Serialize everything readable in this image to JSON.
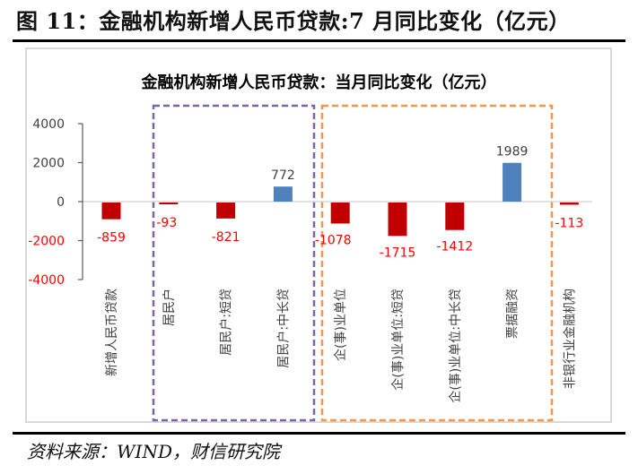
{
  "figure": {
    "title": "图 11：金融机构新增人民币贷款:7 月同比变化（亿元）",
    "source": "资料来源：WIND，财信研究院"
  },
  "colors": {
    "negative": "#c00000",
    "positive": "#4f81bd",
    "negative_label": "#ff0000",
    "positive_label": "#404040",
    "household_box": "#8064a2",
    "enterprise_box": "#f79646",
    "axis": "#595959",
    "zero_line": "#d9d9d9"
  },
  "chart_data": {
    "type": "bar",
    "title": "金融机构新增人民币贷款：当月同比变化（亿元）",
    "xlabel": "",
    "ylabel": "",
    "ylim": [
      -4000,
      4000
    ],
    "yticks": [
      4000,
      2000,
      0,
      -2000,
      -4000
    ],
    "ytick_labels": [
      "4000",
      "2000",
      "0",
      "-2000",
      "-4000"
    ],
    "grid": false,
    "legend": "none",
    "categories": [
      "新增人民币贷款",
      "居民户",
      "居民户:短贷",
      "居民户:中长贷",
      "企(事)业单位",
      "企(事)业单位:短贷",
      "企(事)业单位:中长贷",
      "票据融资",
      "非银行业金融机构"
    ],
    "values": [
      -859,
      -93,
      -821,
      772,
      -1078,
      -1715,
      -1412,
      1989,
      -113
    ],
    "data_labels": [
      "-859",
      "-93",
      "-821",
      "772",
      "-1078",
      "-1715",
      "-1412",
      "1989",
      "-113"
    ],
    "groups": [
      {
        "name": "household",
        "categories": [
          "居民户",
          "居民户:短贷",
          "居民户:中长贷"
        ],
        "style": "dashed-box"
      },
      {
        "name": "enterprise",
        "categories": [
          "企(事)业单位",
          "企(事)业单位:短贷",
          "企(事)业单位:中长贷",
          "票据融资"
        ],
        "style": "dashed-box"
      }
    ]
  }
}
